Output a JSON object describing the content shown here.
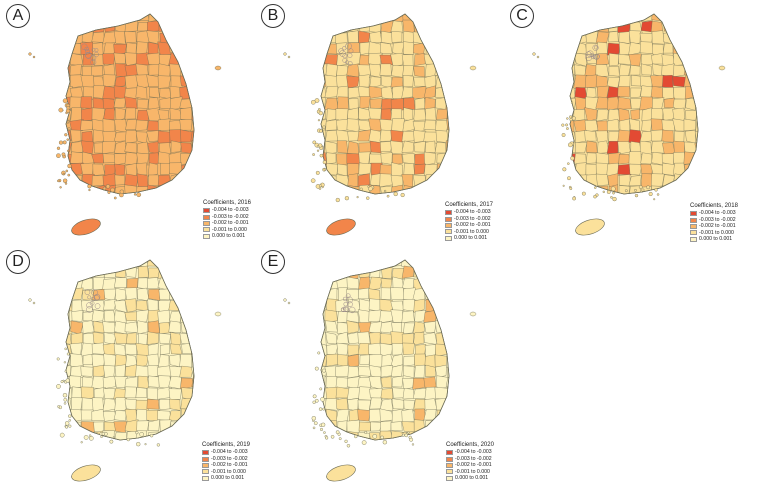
{
  "colors": {
    "c1": "#e34a33",
    "c2": "#f2854a",
    "c3": "#f8b66a",
    "c4": "#fbe19b",
    "c5": "#fdf4c4",
    "border": "#6b6b55",
    "seoul_hatch": "#9a8a8a"
  },
  "panels": [
    {
      "letter": "A",
      "legend_title": "Coefficients, 2016",
      "legend_items": [
        "-0.004 to -0.003",
        "-0.003 to -0.002",
        "-0.002 to -0.001",
        "-0.001 to 0.000",
        "0.000 to 0.001"
      ],
      "fill_base": "c3",
      "fill_accent": "c2",
      "fill_strong": "c2",
      "jeju": "c2"
    },
    {
      "letter": "B",
      "legend_title": "Coefficients, 2017",
      "legend_items": [
        "-0.004 to -0.003",
        "-0.003 to -0.002",
        "-0.002 to -0.001",
        "-0.001 to 0.000",
        "0.000 to 0.001"
      ],
      "fill_base": "c4",
      "fill_accent": "c3",
      "fill_strong": "c2",
      "jeju": "c2"
    },
    {
      "letter": "C",
      "legend_title": "Coefficients, 2018",
      "legend_items": [
        "-0.004 to -0.003",
        "-0.003 to -0.002",
        "-0.002 to -0.001",
        "-0.001 to 0.000",
        "0.000 to 0.001"
      ],
      "fill_base": "c4",
      "fill_accent": "c3",
      "fill_strong": "c1",
      "jeju": "c4"
    },
    {
      "letter": "D",
      "legend_title": "Coefficients, 2019",
      "legend_items": [
        "-0.004 to -0.003",
        "-0.003 to -0.002",
        "-0.002 to -0.001",
        "-0.001 to 0.000",
        "0.000 to 0.001"
      ],
      "fill_base": "c5",
      "fill_accent": "c4",
      "fill_strong": "c3",
      "jeju": "c4"
    },
    {
      "letter": "E",
      "legend_title": "Coefficients, 2020",
      "legend_items": [
        "-0.004 to -0.003",
        "-0.003 to -0.002",
        "-0.002 to -0.001",
        "-0.001 to 0.000",
        "0.000 to 0.001"
      ],
      "fill_base": "c5",
      "fill_accent": "c4",
      "fill_strong": "c3",
      "jeju": "c4"
    }
  ]
}
